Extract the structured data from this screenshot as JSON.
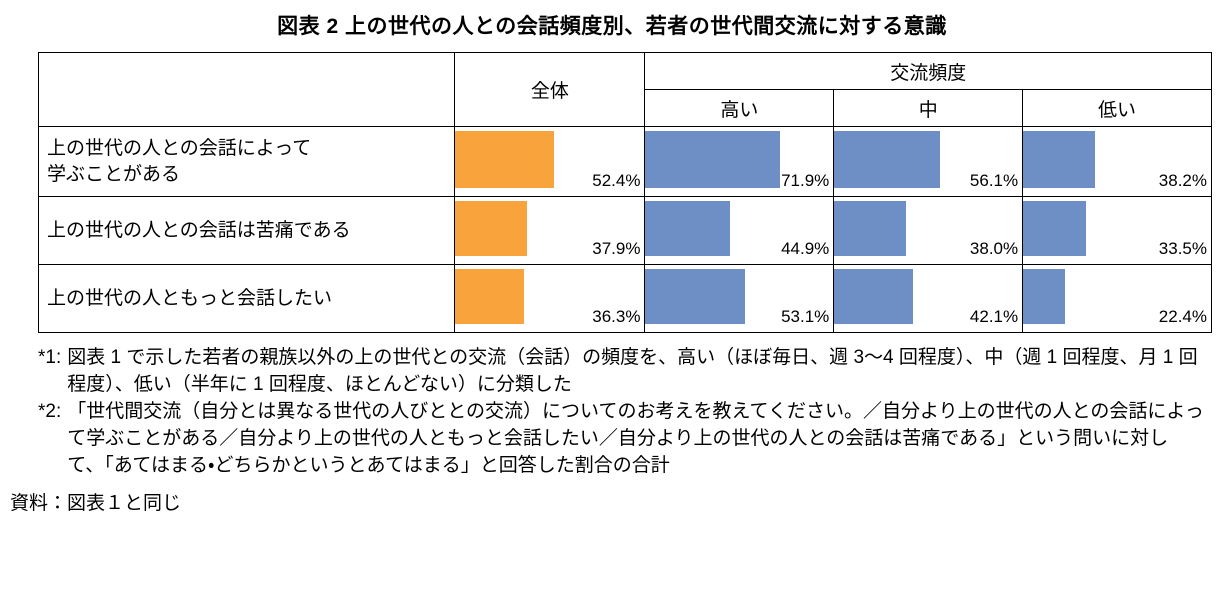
{
  "title": "図表 2 上の世代の人との会話頻度別、若者の世代間交流に対する意識",
  "colors": {
    "overall_bar": "#F9A33C",
    "frequency_bar": "#6E8FC5"
  },
  "table": {
    "headers": {
      "overall": "全体",
      "frequency_group": "交流頻度",
      "high": "高い",
      "mid": "中",
      "low": "低い"
    },
    "rows": [
      {
        "label": "上の世代の人との会話によって\n学ぶことがある",
        "cells": [
          {
            "value": 52.4,
            "label": "52.4%"
          },
          {
            "value": 71.9,
            "label": "71.9%"
          },
          {
            "value": 56.1,
            "label": "56.1%"
          },
          {
            "value": 38.2,
            "label": "38.2%"
          }
        ]
      },
      {
        "label": "上の世代の人との会話は苦痛である",
        "cells": [
          {
            "value": 37.9,
            "label": "37.9%"
          },
          {
            "value": 44.9,
            "label": "44.9%"
          },
          {
            "value": 38.0,
            "label": "38.0%"
          },
          {
            "value": 33.5,
            "label": "33.5%"
          }
        ]
      },
      {
        "label": "上の世代の人ともっと会話したい",
        "cells": [
          {
            "value": 36.3,
            "label": "36.3%"
          },
          {
            "value": 53.1,
            "label": "53.1%"
          },
          {
            "value": 42.1,
            "label": "42.1%"
          },
          {
            "value": 22.4,
            "label": "22.4%"
          }
        ]
      }
    ]
  },
  "chart_data": {
    "type": "bar",
    "title": "図表 2 上の世代の人との会話頻度別、若者の世代間交流に対する意識",
    "categories": [
      "上の世代の人との会話によって学ぶことがある",
      "上の世代の人との会話は苦痛である",
      "上の世代の人ともっと会話したい"
    ],
    "series": [
      {
        "name": "全体",
        "values": [
          52.4,
          37.9,
          36.3
        ],
        "color": "#F9A33C"
      },
      {
        "name": "交流頻度 高い",
        "values": [
          71.9,
          44.9,
          53.1
        ],
        "color": "#6E8FC5"
      },
      {
        "name": "交流頻度 中",
        "values": [
          56.1,
          38.0,
          42.1
        ],
        "color": "#6E8FC5"
      },
      {
        "name": "交流頻度 低い",
        "values": [
          38.2,
          33.5,
          22.4
        ],
        "color": "#6E8FC5"
      }
    ],
    "value_unit": "%",
    "xlim": [
      0,
      100
    ],
    "orientation": "horizontal",
    "grid": false,
    "legend": false,
    "layout": "table-embedded-bars"
  },
  "footnotes": [
    {
      "prefix": "*1:",
      "text": "図表 1 で示した若者の親族以外の上の世代との交流（会話）の頻度を、高い（ほぼ毎日、週 3～4 回程度）、中（週 1 回程度、月 1 回程度）、低い（半年に 1 回程度、ほとんどない）に分類した"
    },
    {
      "prefix": "*2:",
      "text": "「世代間交流（自分とは異なる世代の人びととの交流）についてのお考えを教えてください。／自分より上の世代の人との会話によって学ぶことがある／自分より上の世代の人ともっと会話したい／自分より上の世代の人との会話は苦痛である」という問いに対して、「あてはまる・どちらかというとあてはまる」と回答した割合の合計"
    }
  ],
  "source": "資料：図表１と同じ"
}
